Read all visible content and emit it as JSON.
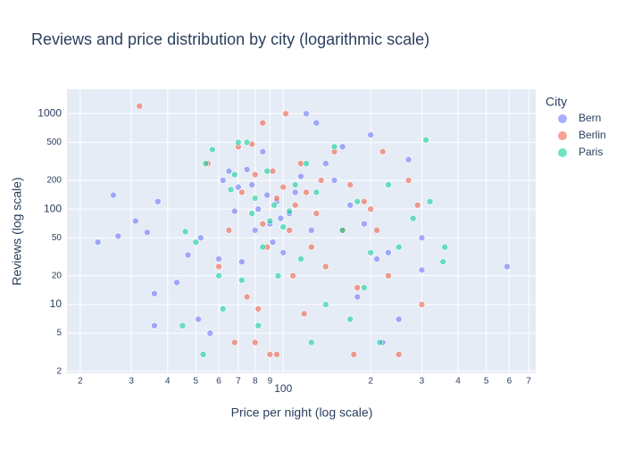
{
  "chart_data": {
    "type": "scatter",
    "title": "Reviews and price distribution by city (logarithmic scale)",
    "xlabel": "Price per night (log scale)",
    "ylabel": "Reviews (log scale)",
    "legend_title": "City",
    "legend": "right",
    "xscale": "log",
    "yscale": "log",
    "grid": true,
    "xlim": [
      18,
      740
    ],
    "ylim": [
      1.9,
      1800
    ],
    "xticks": [
      {
        "value": 20,
        "label": "2"
      },
      {
        "value": 30,
        "label": "3"
      },
      {
        "value": 40,
        "label": "4"
      },
      {
        "value": 50,
        "label": "5"
      },
      {
        "value": 60,
        "label": "6"
      },
      {
        "value": 70,
        "label": "7"
      },
      {
        "value": 80,
        "label": "8"
      },
      {
        "value": 90,
        "label": "9"
      },
      100,
      {
        "value": 200,
        "label": "2"
      },
      {
        "value": 300,
        "label": "3"
      },
      {
        "value": 400,
        "label": "4"
      },
      {
        "value": 500,
        "label": "5"
      },
      {
        "value": 600,
        "label": "6"
      },
      {
        "value": 700,
        "label": "7"
      }
    ],
    "yticks": [
      2,
      5,
      10,
      20,
      50,
      100,
      200,
      500,
      1000
    ],
    "series": [
      {
        "name": "Bern",
        "color": "#636efa",
        "x": [
          23,
          26,
          27,
          31,
          34,
          36,
          36,
          37,
          43,
          47,
          51,
          52,
          56,
          60,
          62,
          65,
          68,
          70,
          72,
          75,
          78,
          80,
          82,
          85,
          88,
          90,
          92,
          95,
          98,
          100,
          105,
          110,
          115,
          120,
          125,
          130,
          140,
          150,
          160,
          170,
          180,
          190,
          200,
          210,
          220,
          230,
          250,
          270,
          300,
          300,
          590
        ],
        "y": [
          45,
          140,
          52,
          75,
          57,
          13,
          6,
          120,
          17,
          33,
          7,
          50,
          5,
          30,
          200,
          250,
          95,
          170,
          28,
          260,
          180,
          60,
          100,
          400,
          140,
          70,
          45,
          120,
          80,
          35,
          90,
          150,
          220,
          1000,
          60,
          800,
          300,
          200,
          450,
          110,
          12,
          70,
          600,
          30,
          4,
          35,
          7,
          330,
          23,
          50,
          25
        ]
      },
      {
        "name": "Berlin",
        "color": "#ef553b",
        "x": [
          32,
          55,
          60,
          65,
          68,
          70,
          72,
          75,
          78,
          80,
          80,
          82,
          85,
          85,
          88,
          90,
          92,
          95,
          95,
          100,
          102,
          105,
          108,
          110,
          115,
          118,
          120,
          125,
          130,
          135,
          140,
          150,
          160,
          170,
          175,
          180,
          190,
          200,
          210,
          220,
          230,
          250,
          270,
          290,
          300
        ],
        "y": [
          1200,
          300,
          25,
          60,
          4,
          450,
          150,
          12,
          480,
          230,
          4,
          9,
          800,
          70,
          40,
          3,
          250,
          3,
          130,
          170,
          1000,
          60,
          20,
          110,
          300,
          8,
          150,
          40,
          90,
          200,
          25,
          400,
          60,
          180,
          3,
          15,
          120,
          100,
          60,
          400,
          20,
          3,
          200,
          110,
          10
        ]
      },
      {
        "name": "Paris",
        "color": "#00cc96",
        "x": [
          45,
          46,
          50,
          53,
          54,
          57,
          60,
          62,
          66,
          68,
          70,
          72,
          75,
          78,
          80,
          82,
          85,
          88,
          90,
          93,
          96,
          100,
          105,
          110,
          115,
          120,
          125,
          130,
          140,
          150,
          160,
          170,
          180,
          190,
          200,
          215,
          230,
          250,
          280,
          310,
          320,
          355,
          360
        ],
        "y": [
          6,
          58,
          45,
          3,
          300,
          420,
          20,
          9,
          160,
          230,
          500,
          18,
          500,
          90,
          130,
          6,
          40,
          250,
          75,
          110,
          20,
          65,
          95,
          180,
          30,
          300,
          4,
          150,
          10,
          450,
          60,
          7,
          120,
          15,
          35,
          4,
          180,
          40,
          80,
          530,
          120,
          28,
          40
        ]
      }
    ]
  }
}
